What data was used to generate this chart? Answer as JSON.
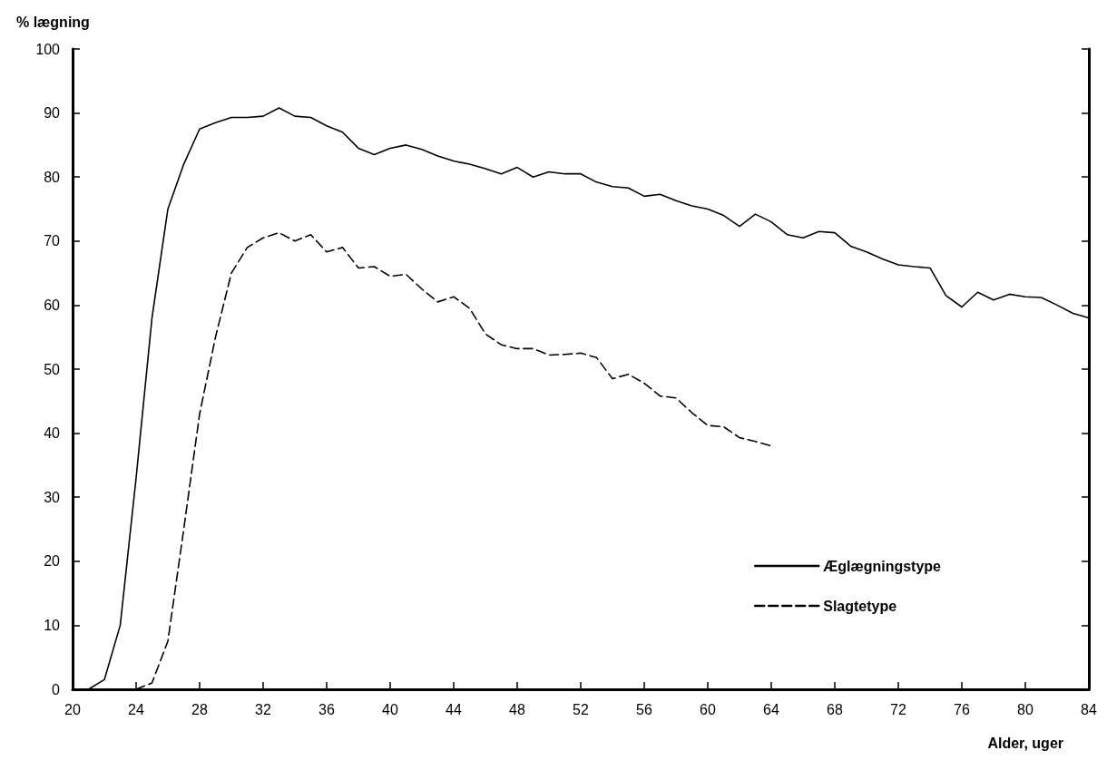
{
  "chart_data": {
    "type": "line",
    "xlabel": "Alder, uger",
    "ylabel": "% lægning",
    "xlim": [
      20,
      84
    ],
    "xticks": [
      20,
      24,
      28,
      32,
      36,
      40,
      44,
      48,
      52,
      56,
      60,
      64,
      68,
      72,
      76,
      80,
      84
    ],
    "ylim": [
      0,
      100
    ],
    "yticks": [
      0,
      10,
      20,
      30,
      40,
      50,
      60,
      70,
      80,
      90,
      100
    ],
    "grid": false,
    "marker": "none",
    "legend": "bottom right",
    "series": [
      {
        "name": "Æglægningstype",
        "color": "#000000",
        "line_style": "solid",
        "x": [
          20,
          21,
          22,
          23,
          24,
          25,
          26,
          27,
          28,
          29,
          30,
          31,
          32,
          33,
          34,
          35,
          36,
          37,
          38,
          39,
          40,
          41,
          42,
          43,
          44,
          45,
          46,
          47,
          48,
          49,
          50,
          51,
          52,
          53,
          54,
          55,
          56,
          57,
          58,
          59,
          60,
          61,
          62,
          63,
          64,
          65,
          66,
          67,
          68,
          69,
          70,
          71,
          72,
          73,
          74,
          75,
          76,
          77,
          78,
          79,
          80,
          81,
          82,
          83,
          84
        ],
        "values": [
          0,
          0,
          1.5,
          10,
          33,
          58,
          75,
          82,
          87.5,
          88.5,
          89.3,
          89.3,
          89.5,
          90.8,
          89.5,
          89.3,
          88,
          87,
          84.5,
          83.5,
          84.5,
          85,
          84.3,
          83.3,
          82.5,
          82,
          81.3,
          80.5,
          81.5,
          80,
          80.8,
          80.5,
          80.5,
          79.2,
          78.5,
          78.3,
          77,
          77.3,
          76.3,
          75.5,
          75,
          74,
          72.3,
          74.2,
          73,
          71,
          70.5,
          71.5,
          71.3,
          69.2,
          68.3,
          67.2,
          66.3,
          66,
          65.8,
          61.5,
          59.7,
          62,
          60.8,
          61.7,
          61.3,
          61.2,
          60,
          58.7,
          58
        ]
      },
      {
        "name": "Slagtetype",
        "color": "#000000",
        "line_style": "dashed",
        "x": [
          24,
          25,
          26,
          27,
          28,
          29,
          30,
          31,
          32,
          33,
          34,
          35,
          36,
          37,
          38,
          39,
          40,
          41,
          42,
          43,
          44,
          45,
          46,
          47,
          48,
          49,
          50,
          51,
          52,
          53,
          54,
          55,
          56,
          57,
          58,
          59,
          60,
          61,
          62,
          63,
          64
        ],
        "values": [
          0,
          1,
          7.5,
          25,
          43,
          55,
          65,
          69,
          70.5,
          71.3,
          70,
          71,
          68.3,
          69,
          65.8,
          66,
          64.5,
          64.8,
          62.5,
          60.5,
          61.3,
          59.5,
          55.5,
          53.8,
          53.2,
          53.2,
          52.2,
          52.3,
          52.5,
          51.8,
          48.5,
          49.2,
          47.8,
          45.8,
          45.5,
          43.2,
          41.2,
          41,
          39.3,
          38.7,
          38
        ]
      }
    ]
  }
}
